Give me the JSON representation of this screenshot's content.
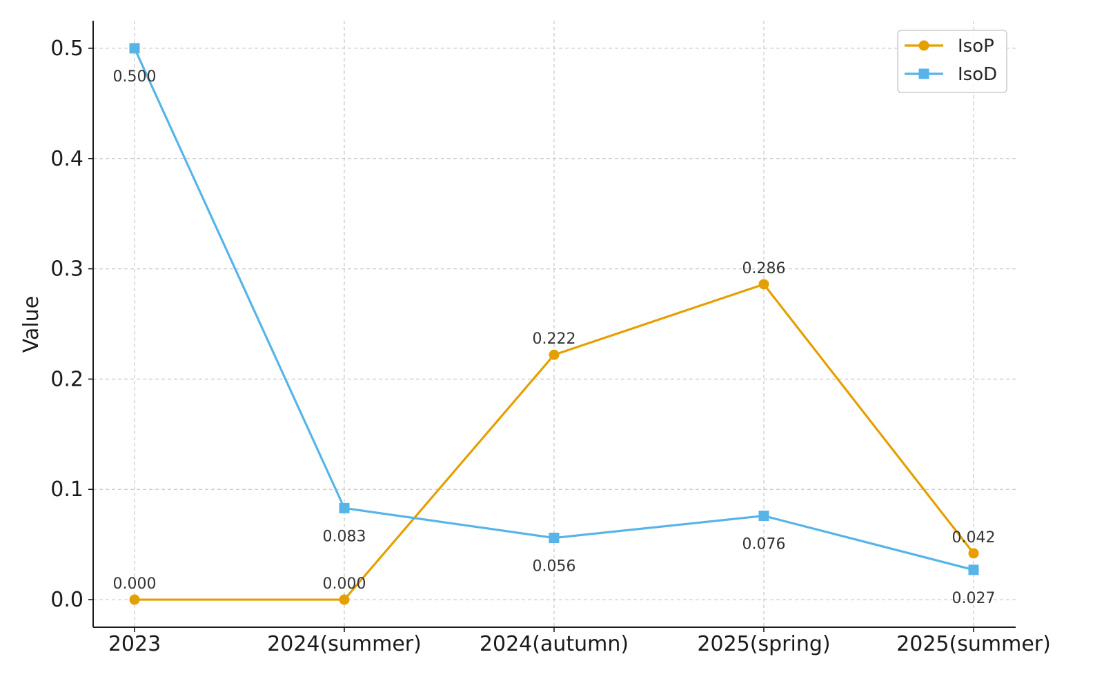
{
  "chart_data": {
    "type": "line",
    "title": "",
    "xlabel": "",
    "ylabel": "Value",
    "categories": [
      "2023",
      "2024(summer)",
      "2024(autumn)",
      "2025(spring)",
      "2025(summer)"
    ],
    "ylim": [
      -0.025,
      0.525
    ],
    "yticks": [
      0.0,
      0.1,
      0.2,
      0.3,
      0.4,
      0.5
    ],
    "ytick_labels": [
      "0.0",
      "0.1",
      "0.2",
      "0.3",
      "0.4",
      "0.5"
    ],
    "grid": true,
    "legend_position": "top-right",
    "series": [
      {
        "name": "IsoP",
        "color": "#E69F00",
        "marker": "circle",
        "values": [
          0.0,
          0.0,
          0.222,
          0.286,
          0.042
        ],
        "labels": [
          "0.000",
          "0.000",
          "0.222",
          "0.286",
          "0.042"
        ],
        "label_position": "above"
      },
      {
        "name": "IsoD",
        "color": "#56B4E9",
        "marker": "square",
        "values": [
          0.5,
          0.083,
          0.056,
          0.076,
          0.027
        ],
        "labels": [
          "0.500",
          "0.083",
          "0.056",
          "0.076",
          "0.027"
        ],
        "label_position": "below"
      }
    ]
  }
}
